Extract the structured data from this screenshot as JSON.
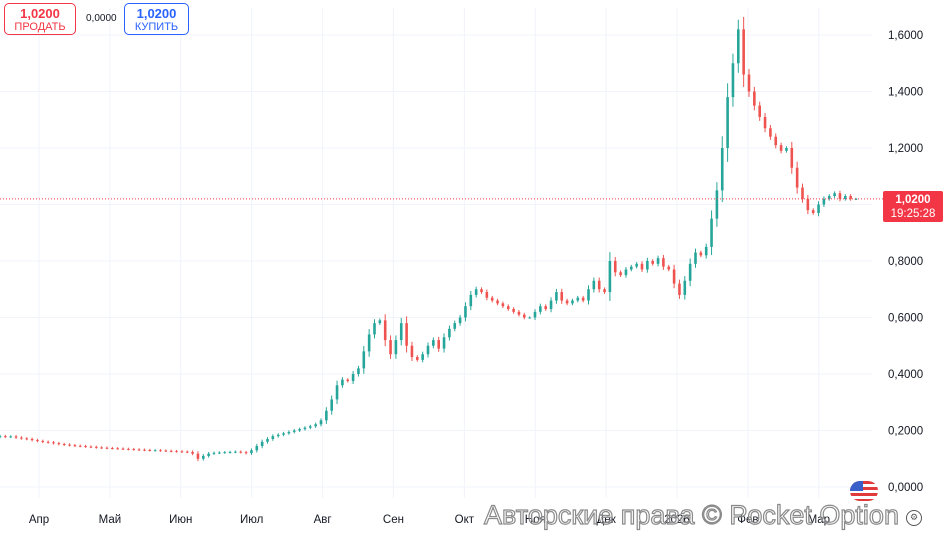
{
  "trade": {
    "sell_price": "1,0200",
    "sell_label": "ПРОДАТЬ",
    "spread": "0,0000",
    "buy_price": "1,0200",
    "buy_label": "КУПИТЬ"
  },
  "price_label": {
    "price": "1,0200",
    "timer": "19:25:28"
  },
  "watermark": "Авторские права © Pocket Option",
  "icons": {
    "flag": "us-flag-icon",
    "settings": "gear-icon"
  },
  "colors": {
    "up": "#26a69a",
    "down": "#ef5350",
    "sell": "#f23645",
    "buy": "#2962ff",
    "grid": "#f0f3fa"
  },
  "chart_data": {
    "type": "candlestick",
    "title": "",
    "current_price": 1.02,
    "ylim": [
      -0.02,
      1.72
    ],
    "y_ticks": [
      0.0,
      0.2,
      0.4,
      0.6,
      0.8,
      1.0,
      1.2,
      1.4,
      1.6
    ],
    "y_tick_labels": [
      "0,0000",
      "0,2000",
      "0,4000",
      "0,6000",
      "0,8000",
      "",
      "1,2000",
      "1,4000",
      "1,6000"
    ],
    "x_range": [
      0,
      12.3
    ],
    "x_ticks": [
      {
        "label": "Апр",
        "pos": 0.55
      },
      {
        "label": "Май",
        "pos": 1.55
      },
      {
        "label": "Июн",
        "pos": 2.55
      },
      {
        "label": "Июл",
        "pos": 3.55
      },
      {
        "label": "Авг",
        "pos": 4.55
      },
      {
        "label": "Сен",
        "pos": 5.55
      },
      {
        "label": "Окт",
        "pos": 6.55
      },
      {
        "label": "Ноя",
        "pos": 7.55
      },
      {
        "label": "Дек",
        "pos": 8.55
      },
      {
        "label": "2026",
        "pos": 9.55
      },
      {
        "label": "Фев",
        "pos": 10.55
      },
      {
        "label": "Мар",
        "pos": 11.55
      }
    ],
    "closes": [
      0.18,
      0.178,
      0.179,
      0.175,
      0.172,
      0.17,
      0.166,
      0.163,
      0.16,
      0.158,
      0.155,
      0.152,
      0.15,
      0.148,
      0.146,
      0.145,
      0.143,
      0.142,
      0.14,
      0.139,
      0.138,
      0.137,
      0.136,
      0.135,
      0.134,
      0.133,
      0.132,
      0.131,
      0.13,
      0.13,
      0.129,
      0.128,
      0.127,
      0.126,
      0.125,
      0.124,
      0.118,
      0.1,
      0.11,
      0.118,
      0.121,
      0.122,
      0.123,
      0.124,
      0.125,
      0.123,
      0.12,
      0.13,
      0.145,
      0.16,
      0.17,
      0.18,
      0.185,
      0.19,
      0.195,
      0.2,
      0.205,
      0.21,
      0.215,
      0.222,
      0.236,
      0.27,
      0.31,
      0.36,
      0.38,
      0.375,
      0.4,
      0.42,
      0.48,
      0.54,
      0.58,
      0.59,
      0.52,
      0.47,
      0.52,
      0.58,
      0.5,
      0.46,
      0.45,
      0.47,
      0.5,
      0.52,
      0.49,
      0.53,
      0.56,
      0.58,
      0.6,
      0.64,
      0.68,
      0.7,
      0.69,
      0.67,
      0.66,
      0.65,
      0.64,
      0.63,
      0.62,
      0.61,
      0.6,
      0.6,
      0.62,
      0.64,
      0.63,
      0.66,
      0.69,
      0.66,
      0.65,
      0.66,
      0.67,
      0.66,
      0.7,
      0.73,
      0.7,
      0.69,
      0.8,
      0.76,
      0.75,
      0.77,
      0.78,
      0.79,
      0.77,
      0.8,
      0.79,
      0.81,
      0.78,
      0.77,
      0.72,
      0.68,
      0.73,
      0.79,
      0.83,
      0.82,
      0.85,
      0.95,
      1.05,
      1.2,
      1.38,
      1.5,
      1.62,
      1.46,
      1.4,
      1.35,
      1.31,
      1.27,
      1.24,
      1.21,
      1.19,
      1.2,
      1.13,
      1.06,
      1.02,
      0.98,
      0.97,
      1.0,
      1.02,
      1.03,
      1.04,
      1.02,
      1.03,
      1.02,
      1.02
    ]
  }
}
